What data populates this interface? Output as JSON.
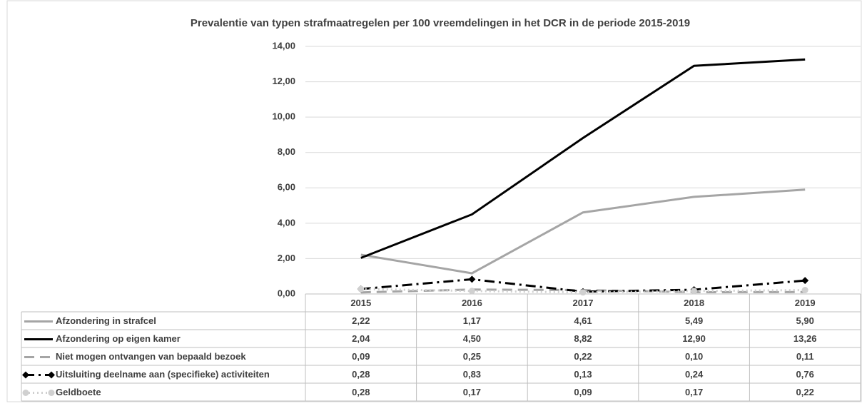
{
  "chart_data": {
    "type": "line",
    "title": "Prevalentie van typen strafmaatregelen per 100 vreemdelingen in het DCR in de periode 2015-2019",
    "categories": [
      "2015",
      "2016",
      "2017",
      "2018",
      "2019"
    ],
    "ylim": [
      0,
      14
    ],
    "yticks": [
      {
        "value": 0,
        "label": "0,00"
      },
      {
        "value": 2,
        "label": "2,00"
      },
      {
        "value": 4,
        "label": "4,00"
      },
      {
        "value": 6,
        "label": "6,00"
      },
      {
        "value": 8,
        "label": "8,00"
      },
      {
        "value": 10,
        "label": "10,00"
      },
      {
        "value": 12,
        "label": "12,00"
      },
      {
        "value": 14,
        "label": "14,00"
      }
    ],
    "grid": true,
    "series": [
      {
        "name": "Afzondering in strafcel",
        "color": "#a5a5a5",
        "style": "solid",
        "values": [
          2.22,
          1.17,
          4.61,
          5.49,
          5.9
        ],
        "value_labels": [
          "2,22",
          "1,17",
          "4,61",
          "5,49",
          "5,90"
        ]
      },
      {
        "name": "Afzondering op eigen kamer",
        "color": "#000000",
        "style": "solid",
        "values": [
          2.04,
          4.5,
          8.82,
          12.9,
          13.26
        ],
        "value_labels": [
          "2,04",
          "4,50",
          "8,82",
          "12,90",
          "13,26"
        ]
      },
      {
        "name": "Niet mogen ontvangen van bepaald bezoek",
        "color": "#a5a5a5",
        "style": "dash",
        "values": [
          0.09,
          0.25,
          0.22,
          0.1,
          0.11
        ],
        "value_labels": [
          "0,09",
          "0,25",
          "0,22",
          "0,10",
          "0,11"
        ]
      },
      {
        "name": "Uitsluiting deelname aan (specifieke) activiteiten",
        "color": "#000000",
        "style": "dashdot",
        "marker": "diamond",
        "values": [
          0.28,
          0.83,
          0.13,
          0.24,
          0.76
        ],
        "value_labels": [
          "0,28",
          "0,83",
          "0,13",
          "0,24",
          "0,76"
        ]
      },
      {
        "name": "Geldboete",
        "color": "#d0d0d0",
        "style": "dot",
        "marker": "circle",
        "values": [
          0.28,
          0.17,
          0.09,
          0.17,
          0.22
        ],
        "value_labels": [
          "0,28",
          "0,17",
          "0,09",
          "0,17",
          "0,22"
        ]
      }
    ]
  }
}
